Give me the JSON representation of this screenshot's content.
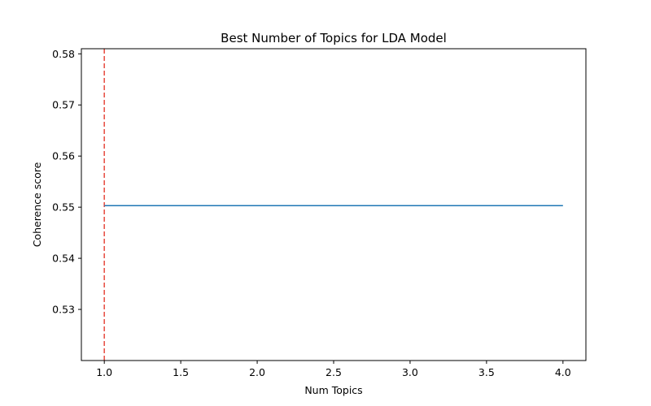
{
  "chart_data": {
    "type": "line",
    "title": "Best Number of Topics for LDA Model",
    "xlabel": "Num Topics",
    "ylabel": "Coherence score",
    "xlim": [
      0.85,
      4.15
    ],
    "ylim": [
      0.52,
      0.581
    ],
    "xticks": [
      1.0,
      1.5,
      2.0,
      2.5,
      3.0,
      3.5,
      4.0
    ],
    "xtick_labels": [
      "1.0",
      "1.5",
      "2.0",
      "2.5",
      "3.0",
      "3.5",
      "4.0"
    ],
    "yticks": [
      0.53,
      0.54,
      0.55,
      0.56,
      0.57,
      0.58
    ],
    "ytick_labels": [
      "0.53",
      "0.54",
      "0.55",
      "0.56",
      "0.57",
      "0.58"
    ],
    "grid": false,
    "series": [
      {
        "x": [
          1,
          2,
          3,
          4
        ],
        "y": [
          0.5503,
          0.5503,
          0.5503,
          0.5503
        ],
        "color": "#1f77b4"
      }
    ],
    "vlines": [
      {
        "x": 1,
        "color": "#e8544a",
        "style": "dashed"
      }
    ]
  }
}
